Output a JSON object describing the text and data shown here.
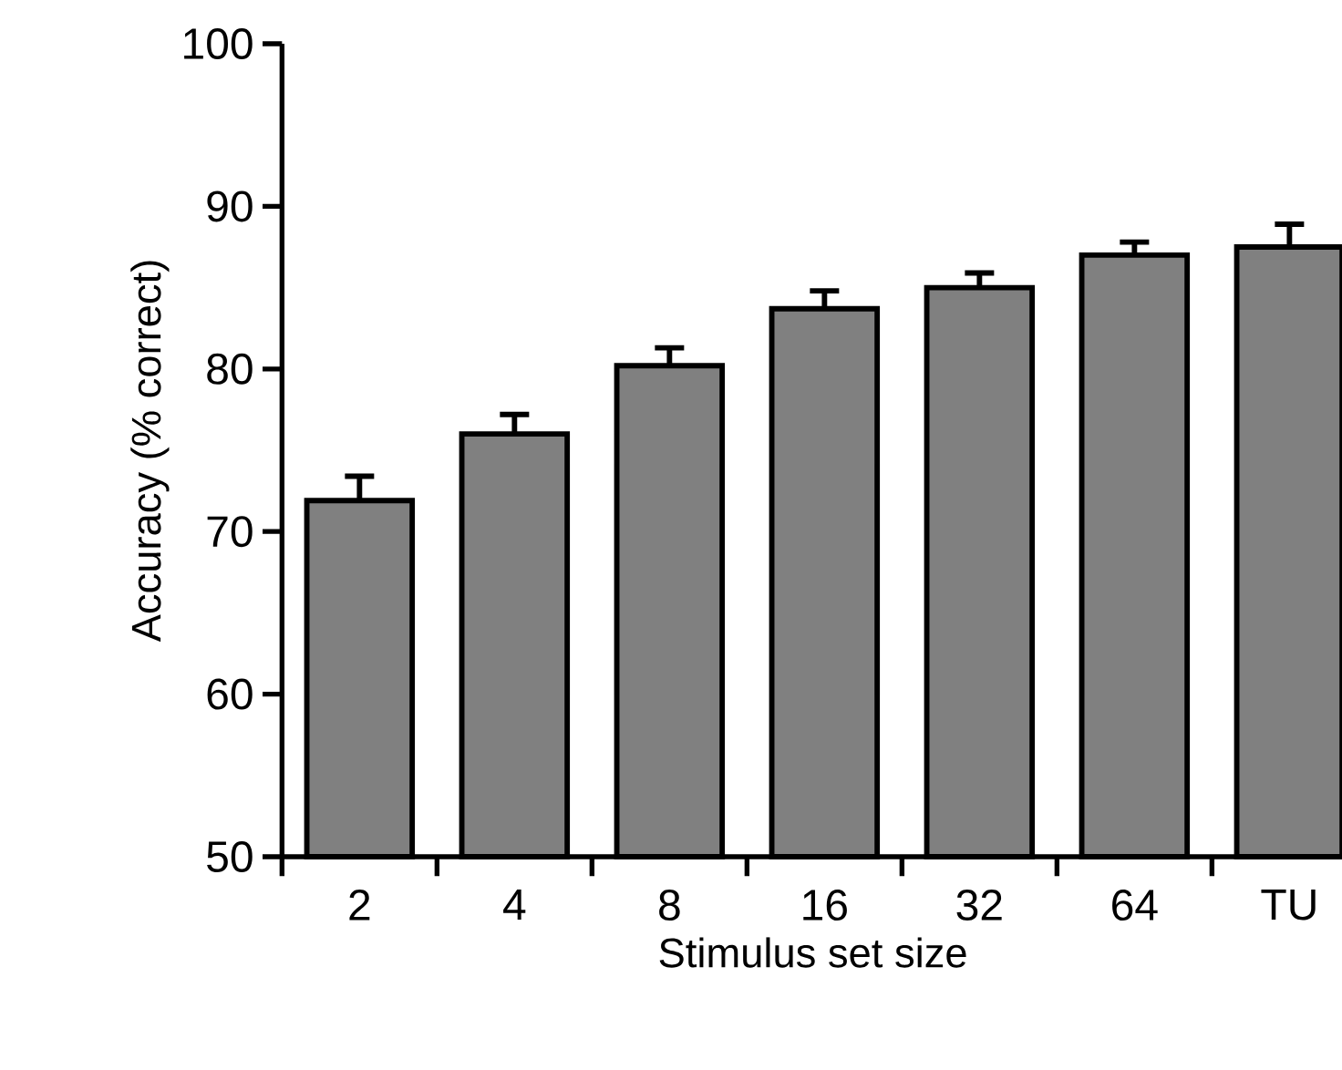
{
  "chart_data": {
    "type": "bar",
    "xlabel": "Stimulus set size",
    "ylabel": "Accuracy (% correct)",
    "categories": [
      "2",
      "4",
      "8",
      "16",
      "32",
      "64",
      "TU"
    ],
    "values": [
      71.9,
      76.0,
      80.2,
      83.7,
      85.0,
      87.0,
      87.5
    ],
    "errors": [
      1.5,
      1.2,
      1.1,
      1.1,
      0.9,
      0.8,
      1.4
    ],
    "color": "#808080",
    "ylim": [
      50,
      100
    ],
    "yticks": [
      50,
      60,
      70,
      80,
      90,
      100
    ],
    "grid": false
  }
}
